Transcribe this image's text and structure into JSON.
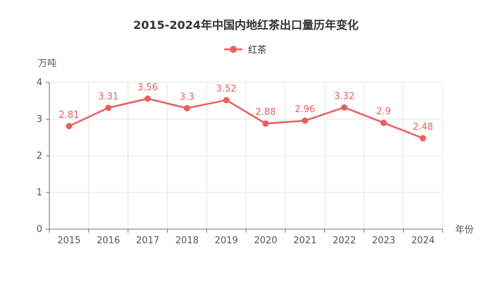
{
  "chart_data": {
    "type": "line",
    "title": "2015-2024年中国内地红茶出口量历年变化",
    "xlabel": "年份",
    "ylabel": "万吨",
    "categories": [
      "2015",
      "2016",
      "2017",
      "2018",
      "2019",
      "2020",
      "2021",
      "2022",
      "2023",
      "2024"
    ],
    "series": [
      {
        "name": "红茶",
        "values": [
          2.81,
          3.31,
          3.56,
          3.3,
          3.52,
          2.88,
          2.96,
          3.32,
          2.9,
          2.48
        ]
      }
    ],
    "ylim": [
      0,
      4
    ],
    "yticks": [
      0,
      1,
      2,
      3,
      4
    ],
    "grid": true,
    "legend_position": "top-center",
    "data_labels": true,
    "colors": {
      "series": "#e8615f"
    }
  }
}
